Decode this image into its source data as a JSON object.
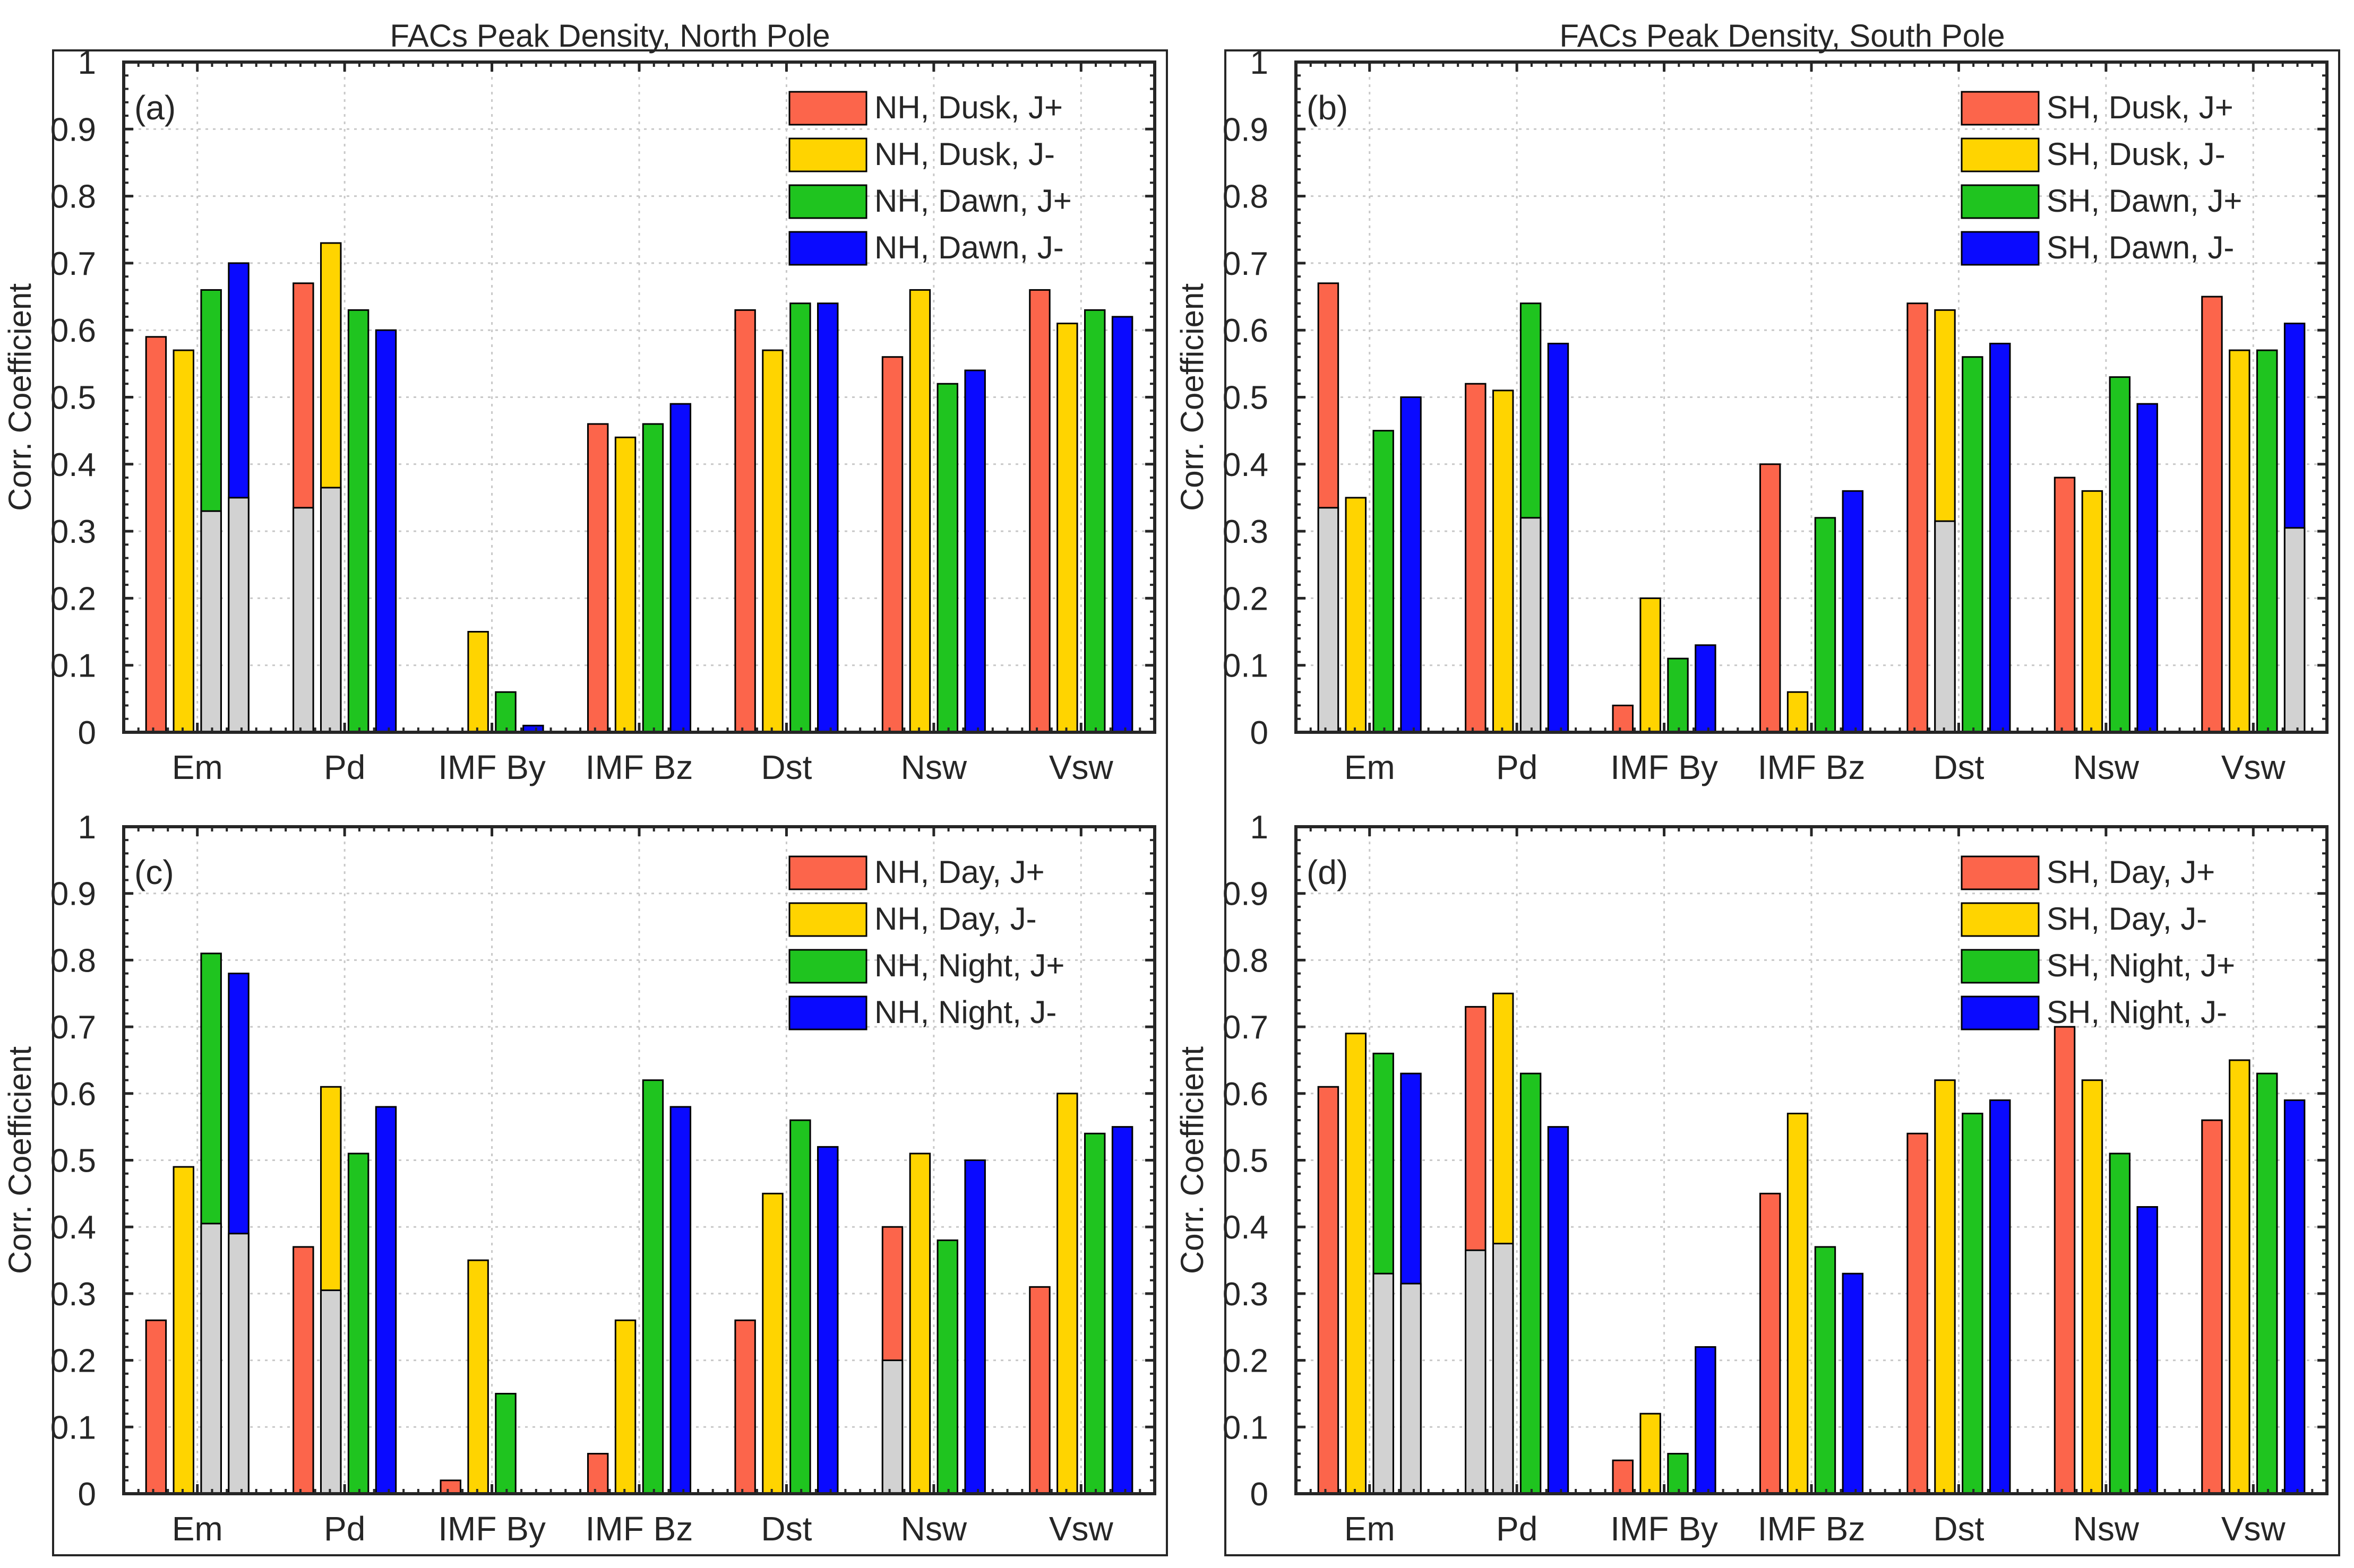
{
  "figure": {
    "titles": [
      "FACs Peak Density, North Pole",
      "FACs Peak Density, South Pole"
    ]
  },
  "colors": {
    "red": "#fc654b",
    "yellow": "#ffd400",
    "green": "#1fc41f",
    "blue": "#0a0aff",
    "gray": "#d2d2d2",
    "axis": "#262626",
    "grid": "#c8c8c8"
  },
  "chart_data": [
    {
      "type": "bar",
      "panel_label": "(a)",
      "title": "FACs Peak Density, North Pole",
      "ylabel": "Corr. Coefficient",
      "xlabel": "",
      "ylim": [
        0,
        1
      ],
      "yticks": [
        "0",
        "0.1",
        "0.2",
        "0.3",
        "0.4",
        "0.5",
        "0.6",
        "0.7",
        "0.8",
        "0.9",
        "1"
      ],
      "grid": true,
      "legend_position": "top-right",
      "categories": [
        "Em",
        "Pd",
        "IMF By",
        "IMF Bz",
        "Dst",
        "Nsw",
        "Vsw"
      ],
      "series": [
        {
          "name": "NH, Dusk, J+",
          "color": "red",
          "values": [
            0.59,
            0.67,
            0,
            0.46,
            0.63,
            0.56,
            0.66
          ],
          "gray": [
            0,
            0.335,
            0,
            0,
            0,
            0,
            0
          ]
        },
        {
          "name": "NH, Dusk, J-",
          "color": "yellow",
          "values": [
            0.57,
            0.73,
            0.15,
            0.44,
            0.57,
            0.66,
            0.61
          ],
          "gray": [
            0,
            0.365,
            0,
            0,
            0,
            0,
            0
          ]
        },
        {
          "name": "NH, Dawn, J+",
          "color": "green",
          "values": [
            0.66,
            0.63,
            0.06,
            0.46,
            0.64,
            0.52,
            0.63
          ],
          "gray": [
            0.33,
            0,
            0,
            0,
            0,
            0,
            0
          ]
        },
        {
          "name": "NH, Dawn, J-",
          "color": "blue",
          "values": [
            0.7,
            0.6,
            0.01,
            0.49,
            0.64,
            0.54,
            0.62
          ],
          "gray": [
            0.35,
            0,
            0,
            0,
            0,
            0,
            0
          ]
        }
      ]
    },
    {
      "type": "bar",
      "panel_label": "(b)",
      "title": "FACs Peak Density, South Pole",
      "ylabel": "Corr. Coefficient",
      "xlabel": "",
      "ylim": [
        0,
        1
      ],
      "yticks": [
        "0",
        "0.1",
        "0.2",
        "0.3",
        "0.4",
        "0.5",
        "0.6",
        "0.7",
        "0.8",
        "0.9",
        "1"
      ],
      "grid": true,
      "legend_position": "top-right",
      "categories": [
        "Em",
        "Pd",
        "IMF By",
        "IMF Bz",
        "Dst",
        "Nsw",
        "Vsw"
      ],
      "series": [
        {
          "name": "SH, Dusk, J+",
          "color": "red",
          "values": [
            0.67,
            0.52,
            0.04,
            0.4,
            0.64,
            0.38,
            0.65
          ],
          "gray": [
            0.335,
            0,
            0,
            0,
            0,
            0,
            0
          ]
        },
        {
          "name": "SH, Dusk, J-",
          "color": "yellow",
          "values": [
            0.35,
            0.51,
            0.2,
            0.06,
            0.63,
            0.36,
            0.57
          ],
          "gray": [
            0,
            0,
            0,
            0,
            0.315,
            0,
            0
          ]
        },
        {
          "name": "SH, Dawn, J+",
          "color": "green",
          "values": [
            0.45,
            0.64,
            0.11,
            0.32,
            0.56,
            0.53,
            0.57
          ],
          "gray": [
            0,
            0.32,
            0,
            0,
            0,
            0,
            0
          ]
        },
        {
          "name": "SH, Dawn, J-",
          "color": "blue",
          "values": [
            0.5,
            0.58,
            0.13,
            0.36,
            0.58,
            0.49,
            0.61
          ],
          "gray": [
            0,
            0,
            0,
            0,
            0,
            0,
            0.305
          ]
        }
      ]
    },
    {
      "type": "bar",
      "panel_label": "(c)",
      "title": "",
      "ylabel": "Corr. Coefficient",
      "xlabel": "",
      "ylim": [
        0,
        1
      ],
      "yticks": [
        "0",
        "0.1",
        "0.2",
        "0.3",
        "0.4",
        "0.5",
        "0.6",
        "0.7",
        "0.8",
        "0.9",
        "1"
      ],
      "grid": true,
      "legend_position": "top-right",
      "categories": [
        "Em",
        "Pd",
        "IMF By",
        "IMF Bz",
        "Dst",
        "Nsw",
        "Vsw"
      ],
      "series": [
        {
          "name": "NH, Day, J+",
          "color": "red",
          "values": [
            0.26,
            0.37,
            0.02,
            0.06,
            0.26,
            0.4,
            0.31
          ],
          "gray": [
            0,
            0,
            0,
            0,
            0,
            0.2,
            0
          ]
        },
        {
          "name": "NH, Day, J-",
          "color": "yellow",
          "values": [
            0.49,
            0.61,
            0.35,
            0.26,
            0.45,
            0.51,
            0.6
          ],
          "gray": [
            0,
            0.305,
            0,
            0,
            0,
            0,
            0
          ]
        },
        {
          "name": "NH, Night, J+",
          "color": "green",
          "values": [
            0.81,
            0.51,
            0.15,
            0.62,
            0.56,
            0.38,
            0.54
          ],
          "gray": [
            0.405,
            0,
            0,
            0,
            0,
            0,
            0
          ]
        },
        {
          "name": "NH, Night, J-",
          "color": "blue",
          "values": [
            0.78,
            0.58,
            0,
            0.58,
            0.52,
            0.5,
            0.55
          ],
          "gray": [
            0.39,
            0,
            0,
            0,
            0,
            0,
            0
          ]
        }
      ]
    },
    {
      "type": "bar",
      "panel_label": "(d)",
      "title": "",
      "ylabel": "Corr. Coefficient",
      "xlabel": "",
      "ylim": [
        0,
        1
      ],
      "yticks": [
        "0",
        "0.1",
        "0.2",
        "0.3",
        "0.4",
        "0.5",
        "0.6",
        "0.7",
        "0.8",
        "0.9",
        "1"
      ],
      "grid": true,
      "legend_position": "top-right",
      "categories": [
        "Em",
        "Pd",
        "IMF By",
        "IMF Bz",
        "Dst",
        "Nsw",
        "Vsw"
      ],
      "series": [
        {
          "name": "SH, Day, J+",
          "color": "red",
          "values": [
            0.61,
            0.73,
            0.05,
            0.45,
            0.54,
            0.7,
            0.56
          ],
          "gray": [
            0,
            0.365,
            0,
            0,
            0,
            0,
            0
          ]
        },
        {
          "name": "SH, Day, J-",
          "color": "yellow",
          "values": [
            0.69,
            0.75,
            0.12,
            0.57,
            0.62,
            0.62,
            0.65
          ],
          "gray": [
            0,
            0.375,
            0,
            0,
            0,
            0,
            0
          ]
        },
        {
          "name": "SH, Night, J+",
          "color": "green",
          "values": [
            0.66,
            0.63,
            0.06,
            0.37,
            0.57,
            0.51,
            0.63
          ],
          "gray": [
            0.33,
            0,
            0,
            0,
            0,
            0,
            0
          ]
        },
        {
          "name": "SH, Night, J-",
          "color": "blue",
          "values": [
            0.63,
            0.55,
            0.22,
            0.33,
            0.59,
            0.43,
            0.59
          ],
          "gray": [
            0.315,
            0,
            0,
            0,
            0,
            0,
            0
          ]
        }
      ]
    }
  ]
}
